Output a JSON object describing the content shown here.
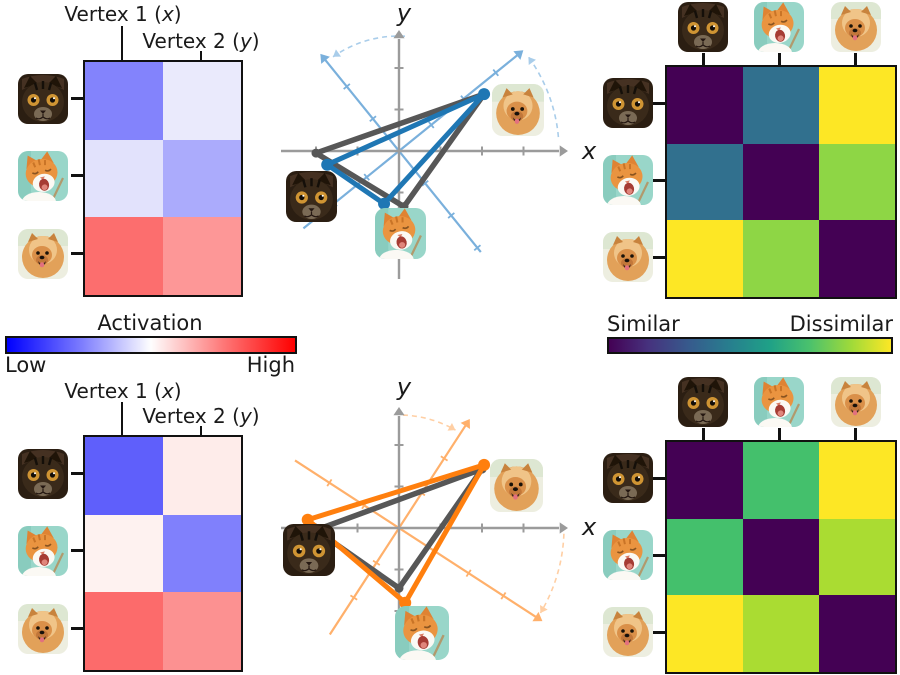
{
  "labels": {
    "vertex1": {
      "pre": "Vertex 1 (",
      "var": "x",
      "post": ")"
    },
    "vertex2": {
      "pre": "Vertex 2 (",
      "var": "y",
      "post": ")"
    },
    "xAxis": "x",
    "yAxis": "y",
    "activation_title": "Activation",
    "low": "Low",
    "high": "High",
    "similar": "Similar",
    "dissimilar": "Dissimilar"
  },
  "colors": {
    "accent_blue": "#1f77b4",
    "light_blue_axes": "#7ab0dc",
    "arc_blue": "#a9cdea",
    "accent_orange": "#ff7f0e",
    "light_orange_axes": "#ffb06b",
    "arc_orange": "#ffcfa4",
    "reference_gray": "#575757",
    "axis_gray": "#9b9b9b",
    "border": "#111111",
    "bwr_stops": [
      "#0000fe 0%",
      "#7878fe 25%",
      "#fefefe 50%",
      "#fe7878 75%",
      "#fe0000 100%"
    ],
    "viridis_stops": [
      "#440154 0%",
      "#46327e 14%",
      "#365c8d 29%",
      "#277f8e 43%",
      "#1fa187 57%",
      "#4ac16d 71%",
      "#a0da39 86%",
      "#fde725 100%"
    ]
  },
  "chart_data": [
    {
      "id": "activation-matrix-top",
      "type": "heatmap",
      "columns": [
        "Vertex 1 (x)",
        "Vertex 2 (y)"
      ],
      "rows": [
        "tabby-cat",
        "ginger-cat",
        "pomeranian-dog"
      ],
      "colormap": "bwr (blue=Low, white=mid, red=High)",
      "values_norm_low_to_high": [
        [
          0.26,
          0.46
        ],
        [
          0.44,
          0.34
        ],
        [
          0.79,
          0.68
        ]
      ],
      "cell_colors": [
        [
          "#8383fc",
          "#eaeafc"
        ],
        [
          "#e2e2fc",
          "#ababfc"
        ],
        [
          "#fc6e6e",
          "#fd9797"
        ]
      ]
    },
    {
      "id": "vertex-space-top",
      "type": "scatter",
      "xlabel": "x",
      "ylabel": "y",
      "rotation_deg": 39,
      "grid": false,
      "series": [
        {
          "name": "reference-triangle",
          "color": "#575757",
          "points": [
            [
              -2.0,
              -0.05
            ],
            [
              2.05,
              1.37
            ],
            [
              0.12,
              -1.34
            ]
          ],
          "point_images": [
            "tabby-cat",
            "pomeranian-dog",
            "ginger-cat"
          ]
        },
        {
          "name": "transformed-triangle",
          "color": "#1f77b4",
          "points": [
            [
              -1.73,
              -0.33
            ],
            [
              2.05,
              1.37
            ],
            [
              -0.36,
              -1.27
            ]
          ],
          "point_images": [
            "tabby-cat",
            "pomeranian-dog",
            "ginger-cat"
          ]
        }
      ]
    },
    {
      "id": "rdm-top",
      "type": "heatmap",
      "columns": [
        "tabby-cat",
        "ginger-cat",
        "pomeranian-dog"
      ],
      "rows": [
        "tabby-cat",
        "ginger-cat",
        "pomeranian-dog"
      ],
      "colormap": "viridis (dark=Similar, yellow=Dissimilar)",
      "values_norm_similar_to_dissimilar": [
        [
          0,
          0.45,
          1
        ],
        [
          0.45,
          0,
          0.85
        ],
        [
          1,
          0.85,
          0
        ]
      ],
      "cell_colors": [
        [
          "#440154",
          "#31708e",
          "#fde725"
        ],
        [
          "#31708e",
          "#440154",
          "#8ed645"
        ],
        [
          "#fde725",
          "#8ed645",
          "#440154"
        ]
      ]
    },
    {
      "id": "activation-matrix-bottom",
      "type": "heatmap",
      "columns": [
        "Vertex 1 (x)",
        "Vertex 2 (y)"
      ],
      "rows": [
        "tabby-cat",
        "ginger-cat",
        "pomeranian-dog"
      ],
      "colormap": "bwr (blue=Low, white=mid, red=High)",
      "values_norm_low_to_high": [
        [
          0.2,
          0.53
        ],
        [
          0.52,
          0.37
        ],
        [
          0.78,
          0.69
        ]
      ],
      "cell_colors": [
        [
          "#5f5ffb",
          "#feecea"
        ],
        [
          "#fef2f0",
          "#8080fc"
        ],
        [
          "#fc6b6b",
          "#fc9191"
        ]
      ]
    },
    {
      "id": "vertex-space-bottom",
      "type": "scatter",
      "xlabel": "x",
      "ylabel": "y",
      "rotation_deg": -33,
      "grid": false,
      "series": [
        {
          "name": "reference-triangle",
          "color": "#575757",
          "points": [
            [
              -2.0,
              -0.05
            ],
            [
              2.0,
              1.42
            ],
            [
              0.0,
              -1.45
            ]
          ],
          "point_images": [
            "tabby-cat",
            "pomeranian-dog",
            "ginger-cat"
          ]
        },
        {
          "name": "transformed-triangle",
          "color": "#ff7f0e",
          "points": [
            [
              -2.2,
              0.2
            ],
            [
              2.05,
              1.52
            ],
            [
              0.15,
              -1.8
            ]
          ],
          "point_images": [
            "tabby-cat",
            "pomeranian-dog",
            "ginger-cat"
          ]
        }
      ]
    },
    {
      "id": "rdm-bottom",
      "type": "heatmap",
      "columns": [
        "tabby-cat",
        "ginger-cat",
        "pomeranian-dog"
      ],
      "rows": [
        "tabby-cat",
        "ginger-cat",
        "pomeranian-dog"
      ],
      "colormap": "viridis (dark=Similar, yellow=Dissimilar)",
      "values_norm_similar_to_dissimilar": [
        [
          0,
          0.68,
          1
        ],
        [
          0.68,
          0,
          0.9
        ],
        [
          1,
          0.9,
          0
        ]
      ],
      "cell_colors": [
        [
          "#440154",
          "#44c06c",
          "#fde725"
        ],
        [
          "#44c06c",
          "#440154",
          "#aadc32"
        ],
        [
          "#fde725",
          "#aadc32",
          "#440154"
        ]
      ]
    },
    {
      "id": "activation-colorbar",
      "type": "colorbar",
      "title": "Activation",
      "min_label": "Low",
      "max_label": "High",
      "colormap": "bwr"
    },
    {
      "id": "dissimilarity-colorbar",
      "type": "colorbar",
      "left_label": "Similar",
      "right_label": "Dissimilar",
      "colormap": "viridis"
    }
  ]
}
